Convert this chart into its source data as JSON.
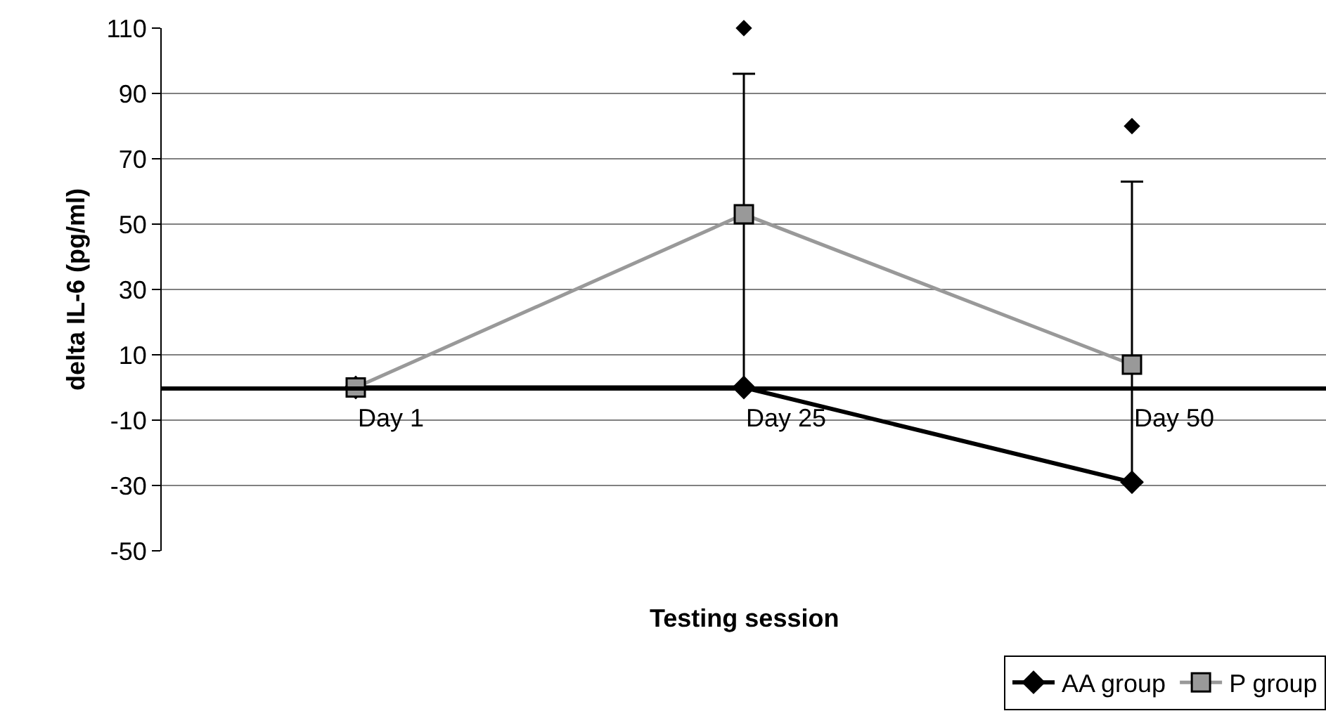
{
  "chart_data": {
    "type": "line",
    "xlabel": "Testing session",
    "ylabel": "delta IL-6 (pg/ml)",
    "categories": [
      "Day 1",
      "Day 25",
      "Day 50"
    ],
    "series": [
      {
        "name": "AA group",
        "color": "#000000",
        "values": [
          0,
          0,
          -29
        ],
        "marker": "diamond",
        "errors": [
          null,
          [
            0,
            96
          ],
          [
            -29,
            63
          ]
        ]
      },
      {
        "name": "P group",
        "color": "#999999",
        "values": [
          0,
          53,
          7
        ],
        "marker": "square"
      },
      {
        "type": "scatter",
        "color": "#000000",
        "values": [
          null,
          110,
          80
        ],
        "marker": "diamond"
      }
    ],
    "ylim": [
      -50,
      110
    ],
    "yticks": [
      -50,
      -30,
      -10,
      10,
      30,
      50,
      70,
      90,
      110
    ],
    "grid": "y",
    "legend": "bottom right"
  }
}
